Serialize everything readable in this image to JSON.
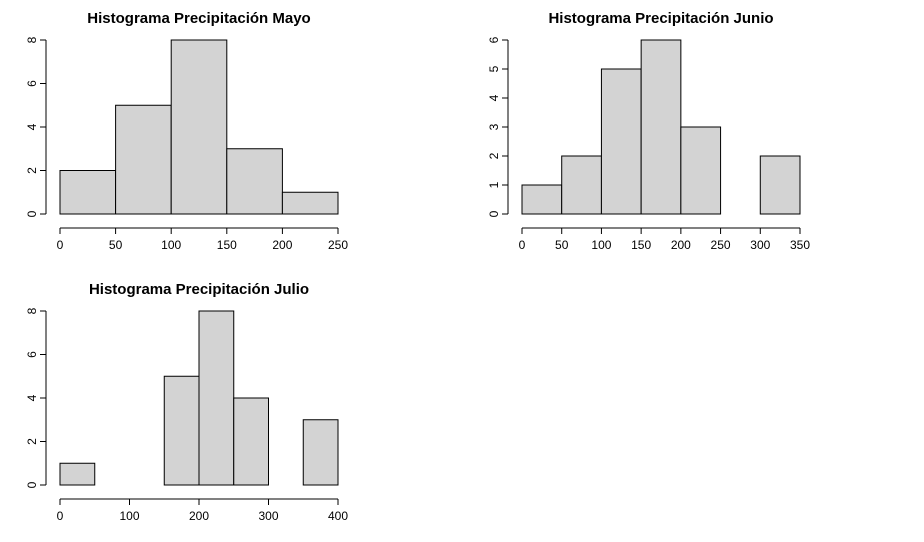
{
  "chart_data": [
    {
      "type": "bar",
      "title": "Histograma Precipitación Mayo",
      "xlabel": "",
      "ylabel": "",
      "bin_edges": [
        0,
        50,
        100,
        150,
        200,
        250
      ],
      "values": [
        2,
        5,
        8,
        3,
        1
      ],
      "xticks": [
        0,
        50,
        100,
        150,
        200,
        250
      ],
      "yticks": [
        0,
        2,
        4,
        6,
        8
      ],
      "xlim": [
        0,
        250
      ],
      "ylim": [
        0,
        8
      ],
      "bar_color": "#d3d3d3"
    },
    {
      "type": "bar",
      "title": "Histograma Precipitación Junio",
      "xlabel": "",
      "ylabel": "",
      "bin_edges": [
        0,
        50,
        100,
        150,
        200,
        250,
        300,
        350
      ],
      "values": [
        1,
        2,
        5,
        6,
        3,
        0,
        2
      ],
      "xticks": [
        0,
        50,
        100,
        150,
        200,
        250,
        300,
        350
      ],
      "yticks": [
        0,
        1,
        2,
        3,
        4,
        5,
        6
      ],
      "xlim": [
        0,
        350
      ],
      "ylim": [
        0,
        6
      ],
      "bar_color": "#d3d3d3"
    },
    {
      "type": "bar",
      "title": "Histograma Precipitación Julio",
      "xlabel": "",
      "ylabel": "",
      "bin_edges": [
        0,
        50,
        100,
        150,
        200,
        250,
        300,
        350,
        400
      ],
      "values": [
        1,
        0,
        0,
        5,
        8,
        4,
        0,
        3
      ],
      "xticks": [
        0,
        100,
        200,
        300,
        400
      ],
      "yticks": [
        0,
        2,
        4,
        6,
        8
      ],
      "xlim": [
        0,
        400
      ],
      "ylim": [
        0,
        8
      ],
      "bar_color": "#d3d3d3"
    }
  ]
}
